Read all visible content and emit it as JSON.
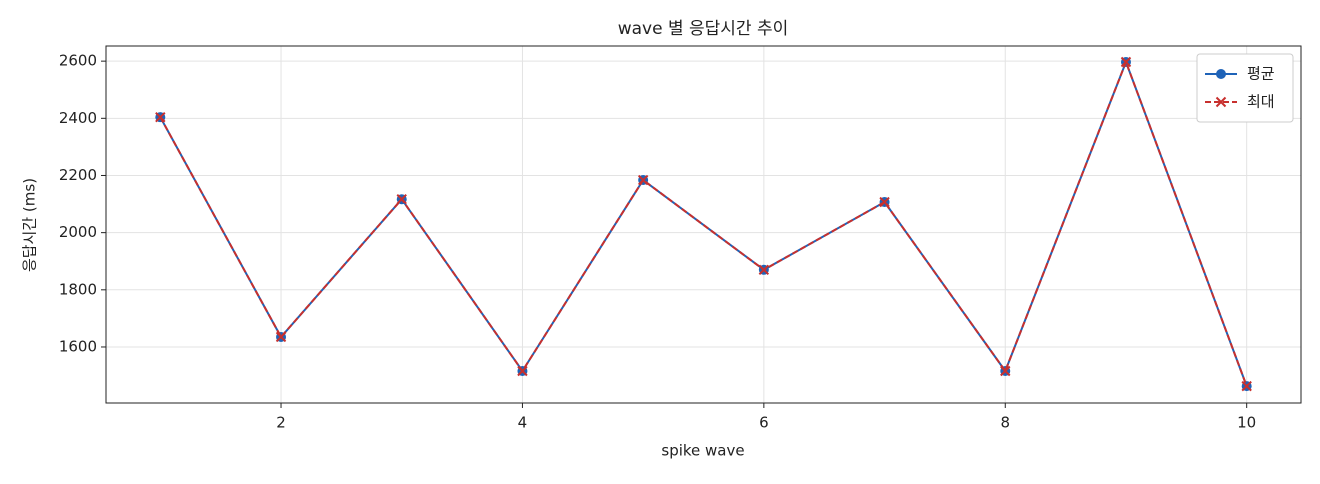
{
  "chart_data": {
    "type": "line",
    "title": "wave 별 응답시간 추이",
    "x_label": "spike wave",
    "y_label": "응답시간 (ms)",
    "x": [
      1,
      2,
      3,
      4,
      5,
      6,
      7,
      8,
      9,
      10
    ],
    "series": [
      {
        "name": "평균",
        "color": "#1f63b8",
        "marker": "o",
        "linestyle": "solid",
        "values": [
          2404,
          1635,
          2117,
          1516,
          2184,
          1870,
          2107,
          1516,
          2597,
          1463
        ]
      },
      {
        "name": "최대",
        "color": "#c8302e",
        "marker": "x",
        "linestyle": "dashed",
        "values": [
          2404,
          1635,
          2117,
          1516,
          2184,
          1870,
          2107,
          1516,
          2597,
          1463
        ]
      }
    ],
    "xlim": [
      0.55,
      10.45
    ],
    "xticks": [
      2,
      4,
      6,
      8,
      10
    ],
    "ylim": [
      1404,
      2653
    ],
    "yticks": [
      1600,
      1800,
      2000,
      2200,
      2400,
      2600
    ],
    "grid": true,
    "legend": "upper right"
  }
}
